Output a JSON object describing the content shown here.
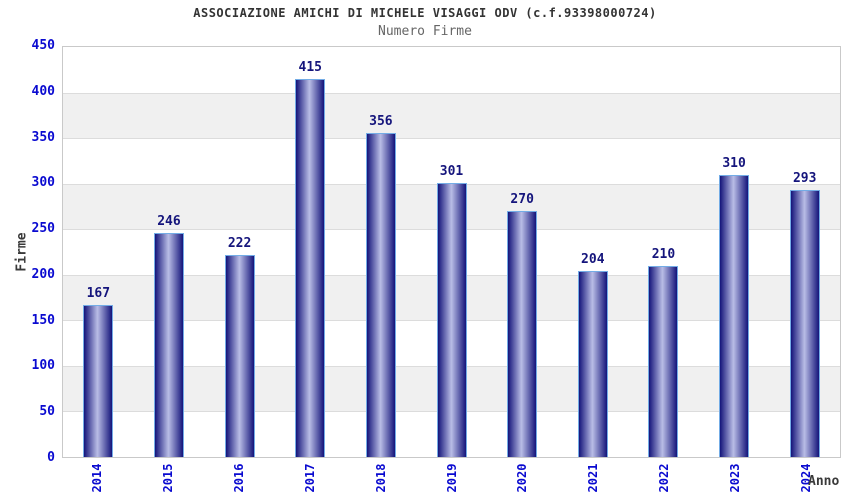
{
  "header": {
    "title": "ASSOCIAZIONE AMICHI DI MICHELE VISAGGI ODV (c.f.93398000724)",
    "subtitle": "Numero Firme"
  },
  "chart_data": {
    "type": "bar",
    "title": "ASSOCIAZIONE AMICHI DI MICHELE VISAGGI ODV (c.f.93398000724)",
    "subtitle": "Numero Firme",
    "xlabel": "Anno",
    "ylabel": "Firme",
    "categories": [
      "2014",
      "2015",
      "2016",
      "2017",
      "2018",
      "2019",
      "2020",
      "2021",
      "2022",
      "2023",
      "2024"
    ],
    "values": [
      167,
      246,
      222,
      415,
      356,
      301,
      270,
      204,
      210,
      310,
      293
    ],
    "ylim": [
      0,
      450
    ],
    "ytick_step": 50,
    "legend": "none",
    "grid": "alternating horizontal 50-unit bands, light gray",
    "x_tick_rotation": -90,
    "colors": {
      "bar_edge": "#14147a",
      "bar_center": "#b9bde6",
      "bar_border": "#73ace6",
      "tick_label": "#0a0ad0",
      "value_label": "#15157c",
      "band_gray": "#f0f0f0",
      "band_line": "#dcdcdc",
      "plot_border": "#c9c9c9",
      "title_color": "#333333",
      "subtitle_color": "#666666",
      "axis_label_color": "#3a3a3a"
    }
  }
}
